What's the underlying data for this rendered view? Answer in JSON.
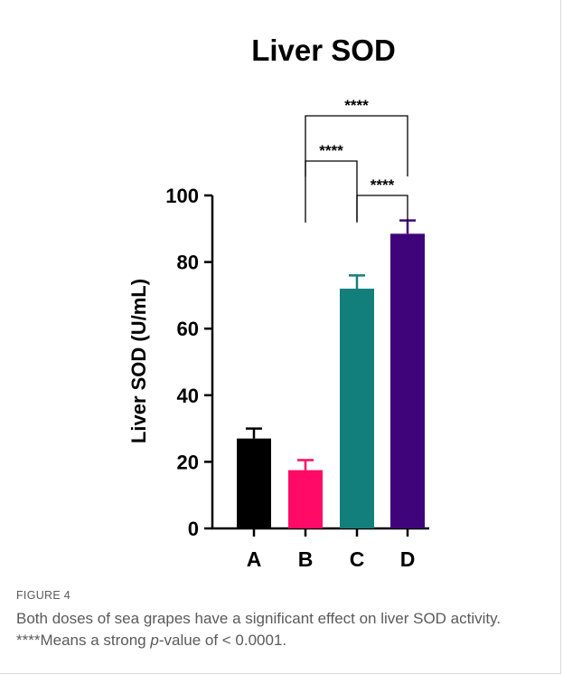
{
  "chart_data": {
    "type": "bar",
    "title": "Liver SOD",
    "ylabel": "Liver SOD (U/mL)",
    "xlabel": "",
    "categories": [
      "A",
      "B",
      "C",
      "D"
    ],
    "values": [
      27,
      17.5,
      72,
      88.5
    ],
    "errors": [
      3,
      3,
      4,
      4
    ],
    "colors": [
      "#000000",
      "#ff0a66",
      "#127f7b",
      "#3f0479"
    ],
    "ylim": [
      0,
      100
    ],
    "yticks": [
      0,
      20,
      40,
      60,
      80,
      100
    ],
    "ytick_labels": [
      "0",
      "20",
      "40",
      "60",
      "80",
      "100"
    ],
    "grid": false,
    "significance": [
      {
        "from": "B",
        "to": "D",
        "label": "****"
      },
      {
        "from": "B",
        "to": "C",
        "label": "****"
      },
      {
        "from": "C",
        "to": "D",
        "label": "****"
      }
    ]
  },
  "caption": {
    "label": "FIGURE 4",
    "text_before": "Both doses of sea grapes have a significant effect on liver SOD activity. ****Means a strong ",
    "italic": "p",
    "text_after": "-value of < 0.0001."
  }
}
